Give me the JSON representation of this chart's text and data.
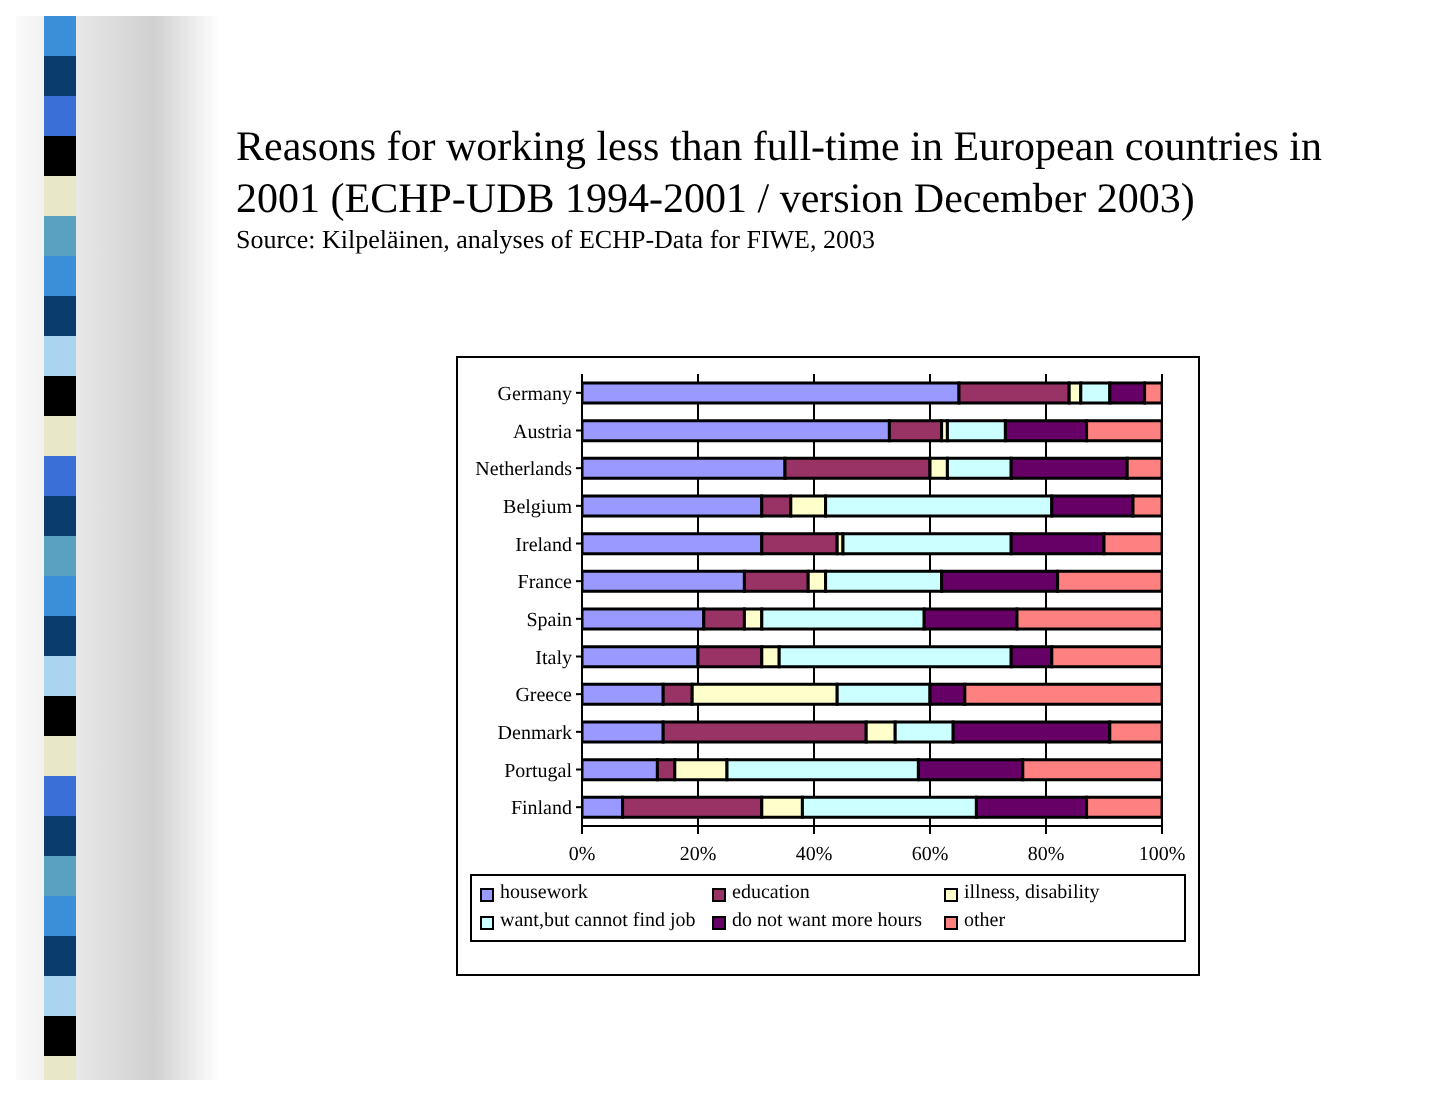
{
  "chart_data": {
    "type": "bar",
    "orientation": "horizontal",
    "stacked": true,
    "title": "Reasons for working less than full-time in European countries in 2001 (ECHP-UDB 1994-2001 / version December 2003)",
    "annotations": [
      "Source: Kilpeläinen, analyses of ECHP-Data for FIWE, 2003"
    ],
    "categories": [
      "Germany",
      "Austria",
      "Netherlands",
      "Belgium",
      "Ireland",
      "France",
      "Spain",
      "Italy",
      "Greece",
      "Denmark",
      "Portugal",
      "Finland"
    ],
    "series": [
      {
        "name": "housework",
        "color": "#9999ff",
        "values": [
          65,
          53,
          35,
          31,
          31,
          28,
          21,
          20,
          14,
          14,
          13,
          7
        ]
      },
      {
        "name": "education",
        "color": "#993366",
        "values": [
          19,
          9,
          25,
          5,
          13,
          11,
          7,
          11,
          5,
          35,
          3,
          24
        ]
      },
      {
        "name": "illness, disability",
        "color": "#ffffcc",
        "values": [
          2,
          1,
          3,
          6,
          1,
          3,
          3,
          3,
          25,
          5,
          9,
          7
        ]
      },
      {
        "name": "want,but cannot find job",
        "color": "#ccffff",
        "values": [
          5,
          10,
          11,
          39,
          29,
          20,
          28,
          40,
          16,
          10,
          33,
          30
        ]
      },
      {
        "name": "do not want more hours",
        "color": "#660066",
        "values": [
          6,
          14,
          20,
          14,
          16,
          20,
          16,
          7,
          6,
          27,
          18,
          19
        ]
      },
      {
        "name": "other",
        "color": "#ff8080",
        "values": [
          3,
          13,
          6,
          5,
          10,
          18,
          25,
          19,
          34,
          9,
          24,
          13
        ]
      }
    ],
    "xlim": [
      0,
      100
    ],
    "xticks": [
      {
        "value": 0,
        "label": "0%"
      },
      {
        "value": 20,
        "label": "20%"
      },
      {
        "value": 40,
        "label": "40%"
      },
      {
        "value": 60,
        "label": "60%"
      },
      {
        "value": 80,
        "label": "80%"
      },
      {
        "value": 100,
        "label": "100%"
      }
    ],
    "grid": "x",
    "legend": "bottom"
  }
}
